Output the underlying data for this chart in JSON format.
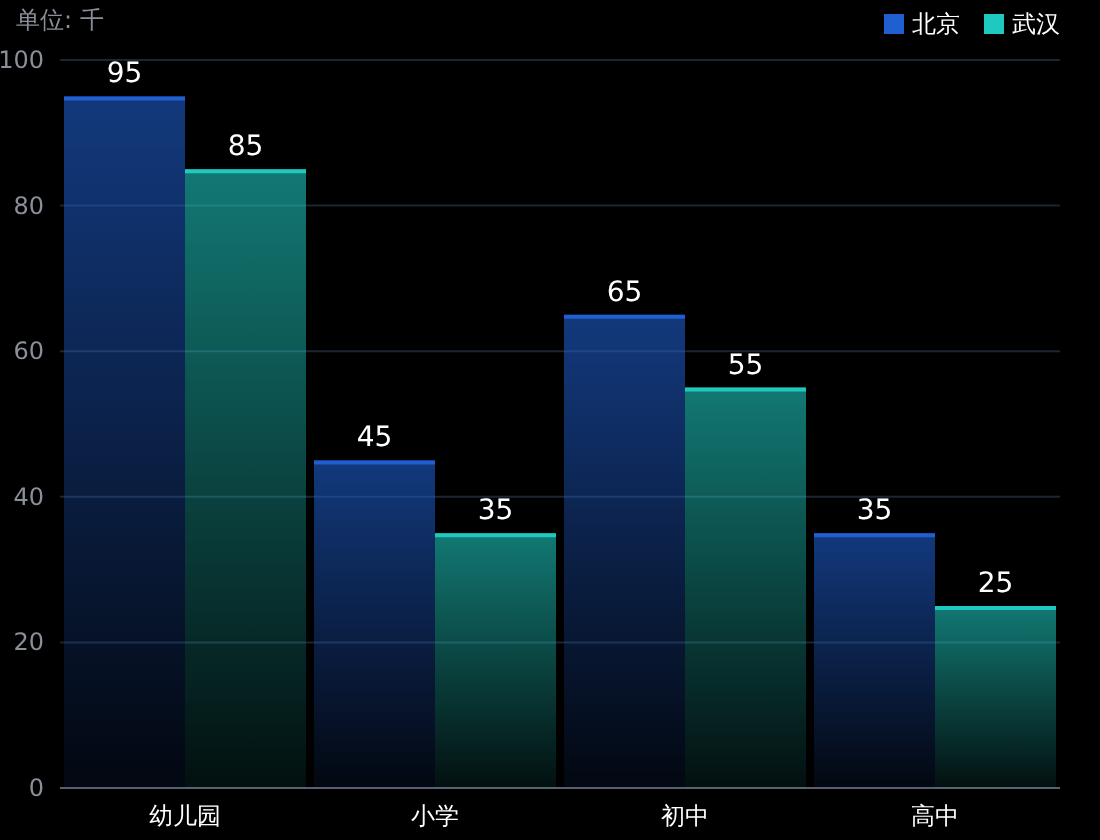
{
  "chart_data": {
    "type": "bar",
    "ylabel": "单位: 千",
    "categories": [
      "幼儿园",
      "小学",
      "初中",
      "高中"
    ],
    "series": [
      {
        "name": "北京",
        "color": "#1f5fd0",
        "values": [
          95,
          45,
          65,
          35
        ]
      },
      {
        "name": "武汉",
        "color": "#1ec9c0",
        "values": [
          85,
          35,
          55,
          25
        ]
      }
    ],
    "ylim": [
      0,
      100
    ],
    "yticks": [
      0,
      20,
      40,
      60,
      80,
      100
    ],
    "grid": "y",
    "legend": "top right",
    "data_labels": true
  }
}
